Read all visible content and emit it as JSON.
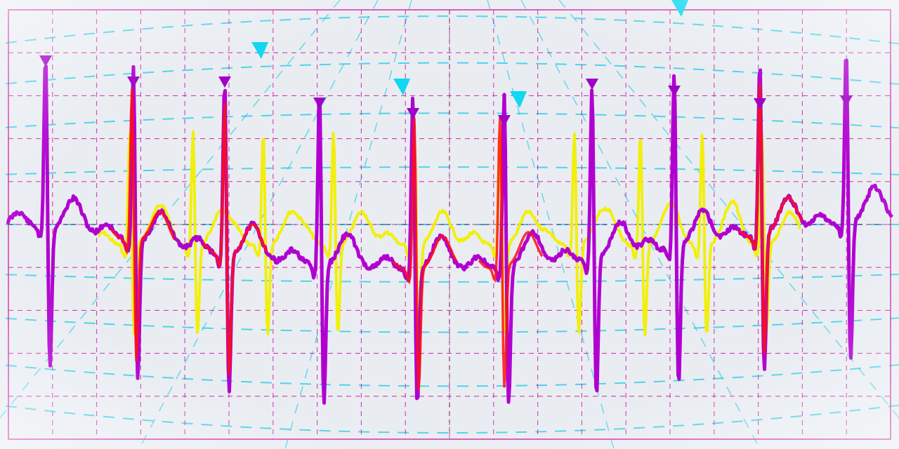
{
  "colors": {
    "background": "#e9edf2",
    "grid": "#d0109d",
    "guides": "#1ec8e6",
    "yellow_trace": "#f2ef00",
    "red_trace": "#ff1010",
    "magenta_trace": "#b000d0",
    "marker": "#a000c8"
  },
  "chart_data": {
    "type": "line",
    "title": "",
    "xlabel": "",
    "ylabel": "",
    "grid": true,
    "legend": "none",
    "series": [
      {
        "color_key": "magenta_trace",
        "r_peaks_x": [
          65,
          190,
          320,
          455,
          588,
          718,
          843,
          960,
          1082,
          1205
        ],
        "beats_per_view": 10
      },
      {
        "color_key": "yellow_trace",
        "r_peaks_x": [
          185,
          275,
          375,
          475,
          590,
          712,
          818,
          912,
          1000,
          1085
        ],
        "beats_per_view": 10
      },
      {
        "color_key": "red_trace",
        "r_peaks_x": [
          188,
          320,
          590,
          712,
          1082
        ],
        "beats_per_view": 5
      }
    ],
    "markers": {
      "magenta_count": 10,
      "cyan_count": 4
    }
  }
}
